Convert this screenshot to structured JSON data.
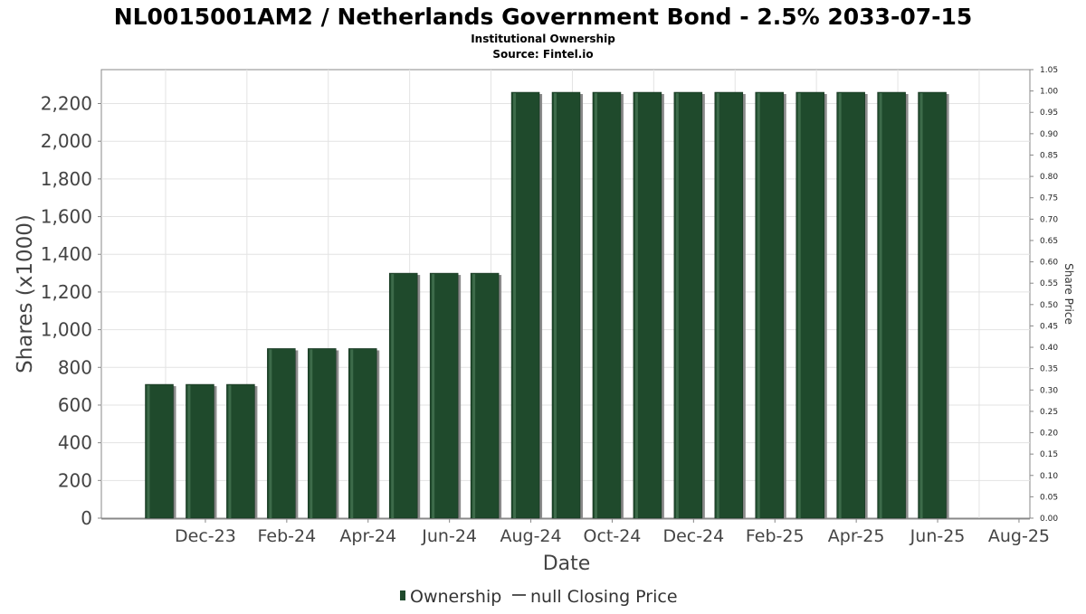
{
  "chart_data": {
    "type": "bar",
    "title": "NL0015001AM2 / Netherlands Government Bond - 2.5% 2033-07-15",
    "subtitle": "Institutional Ownership",
    "source": "Source: Fintel.io",
    "xlabel": "Date",
    "ylabel": "Shares (x1000)",
    "y2label": "Share Price",
    "ylim": [
      0,
      2380
    ],
    "y2lim": [
      0,
      1.05
    ],
    "yticks": [
      "0",
      "200",
      "400",
      "600",
      "800",
      "1,000",
      "1,200",
      "1,400",
      "1,600",
      "1,800",
      "2,000",
      "2,200"
    ],
    "y2ticks": [
      "0.00",
      "0.05",
      "0.10",
      "0.15",
      "0.20",
      "0.25",
      "0.30",
      "0.35",
      "0.40",
      "0.45",
      "0.50",
      "0.55",
      "0.60",
      "0.65",
      "0.70",
      "0.75",
      "0.80",
      "0.85",
      "0.90",
      "0.95",
      "1.00",
      "1.05"
    ],
    "xticks": [
      "Dec-23",
      "Feb-24",
      "Apr-24",
      "Jun-24",
      "Aug-24",
      "Oct-24",
      "Dec-24",
      "Feb-25",
      "Apr-25",
      "Jun-25",
      "Aug-25"
    ],
    "grid": true,
    "legend_position": "bottom-center",
    "series": [
      {
        "name": "Ownership",
        "color": "#1f4a2c",
        "values": [
          710,
          710,
          710,
          900,
          900,
          900,
          1300,
          1300,
          1300,
          2260,
          2260,
          2260,
          2260,
          2260,
          2260,
          2260,
          2260,
          2260,
          2260,
          2260
        ]
      }
    ],
    "legend": [
      {
        "label": "Ownership",
        "marker": "bar",
        "color": "#1f4a2c"
      },
      {
        "label": "null Closing Price",
        "marker": "line",
        "color": "#555555"
      }
    ]
  }
}
